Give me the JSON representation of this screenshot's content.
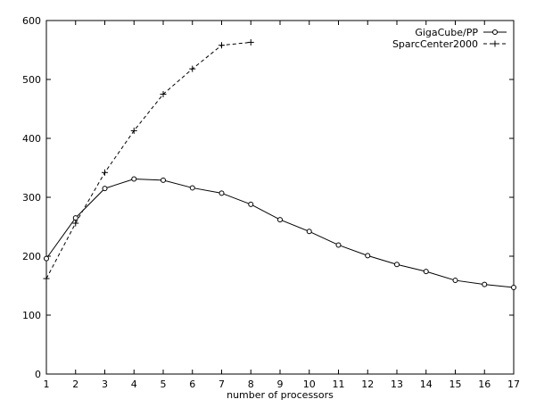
{
  "chart_data": {
    "type": "line",
    "title": "",
    "xlabel": "number of processors",
    "ylabel": "",
    "xlim": [
      1,
      17
    ],
    "ylim": [
      0,
      600
    ],
    "xticks": [
      "1",
      "2",
      "3",
      "4",
      "5",
      "6",
      "7",
      "8",
      "9",
      "10",
      "11",
      "12",
      "13",
      "14",
      "15",
      "16",
      "17"
    ],
    "yticks": [
      "0",
      "100",
      "200",
      "300",
      "400",
      "500",
      "600"
    ],
    "grid": false,
    "legend_position": "top-right",
    "series": [
      {
        "name": "GigaCube/PP",
        "style": "solid",
        "marker": "circle",
        "color": "#000000",
        "x": [
          1,
          2,
          3,
          4,
          5,
          6,
          7,
          8,
          9,
          10,
          11,
          12,
          13,
          14,
          15,
          16,
          17
        ],
        "y": [
          196,
          265,
          315,
          331,
          329,
          316,
          307,
          288,
          262,
          242,
          219,
          201,
          186,
          174,
          159,
          152,
          147
        ]
      },
      {
        "name": "SparcCenter2000",
        "style": "dashed",
        "marker": "plus",
        "color": "#000000",
        "x": [
          1,
          2,
          3,
          4,
          5,
          6,
          7,
          8
        ],
        "y": [
          162,
          256,
          342,
          413,
          475,
          518,
          558,
          563
        ]
      }
    ]
  }
}
